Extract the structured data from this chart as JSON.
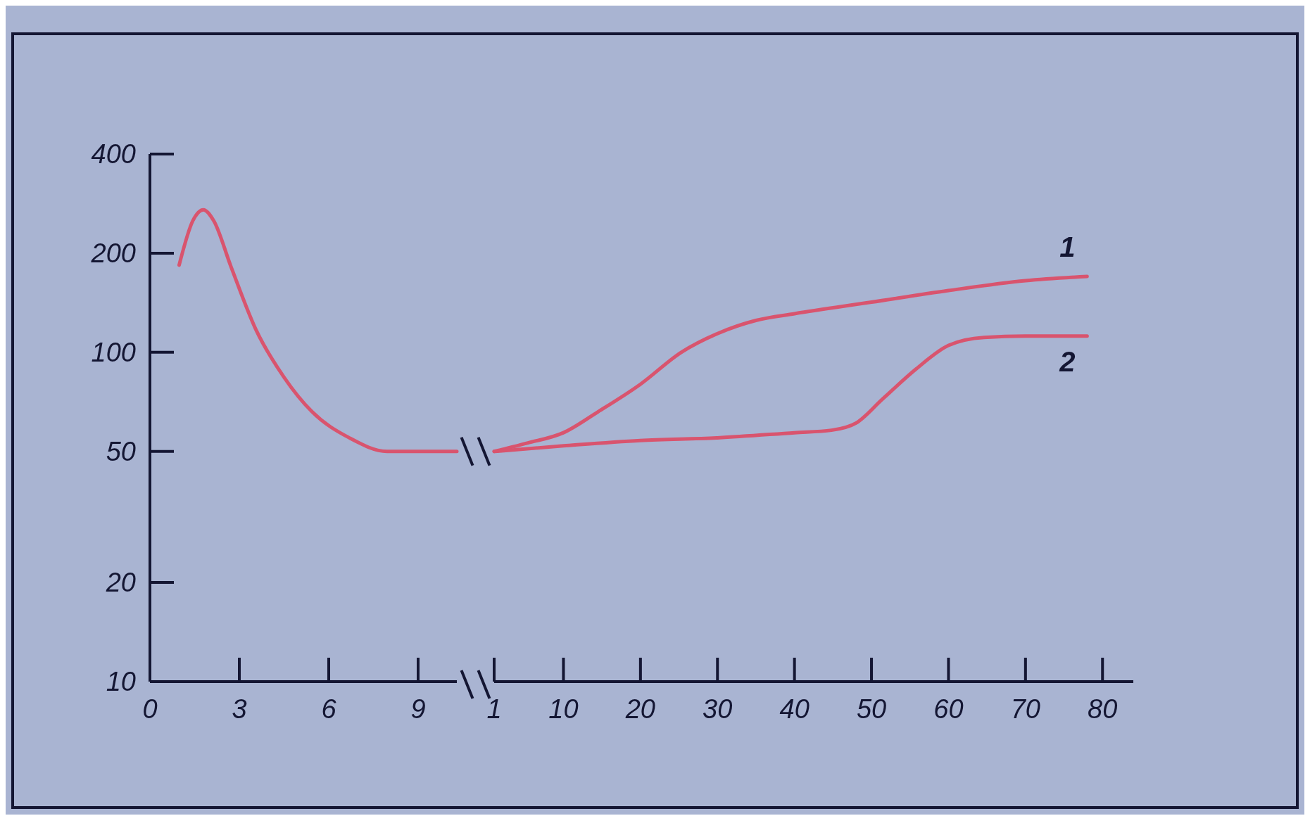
{
  "chart_data": [
    {
      "type": "line",
      "x": [
        0.98,
        1.44,
        1.79,
        2.14,
        2.72,
        3.56,
        4.5,
        5.44,
        6.69,
        7.96,
        9.55,
        10.3
      ],
      "series": [
        {
          "color": "#d9546e",
          "values": [
            184,
            251,
            271,
            251,
            182,
            117,
            84,
            66,
            55,
            50,
            50,
            50
          ]
        }
      ],
      "xlim": [
        0,
        10.3
      ],
      "ylim": [
        10,
        400
      ],
      "xticks": [
        0,
        3,
        6,
        9
      ],
      "yticks": [
        10,
        20,
        50,
        100,
        200,
        400
      ],
      "log": true,
      "marker": "none",
      "line_style": "solid"
    },
    {
      "type": "line",
      "x": [
        1,
        5.3,
        10,
        14.5,
        20,
        25.3,
        30,
        35,
        40,
        50,
        60,
        70,
        78
      ],
      "series": [
        {
          "name": "1",
          "color": "#d9546e",
          "values": [
            50,
            53,
            57,
            66,
            80,
            100,
            114,
            125,
            131,
            142,
            154,
            165,
            170
          ]
        },
        {
          "name": "2",
          "color": "#d9546e",
          "x": [
            1,
            10,
            20,
            30,
            40,
            44.8,
            48,
            51.4,
            55.8,
            60,
            64.6,
            70,
            78
          ],
          "values": [
            50,
            52,
            54,
            55,
            57,
            58,
            61,
            72,
            89,
            105,
            111,
            112,
            112
          ]
        }
      ],
      "xlim": [
        1,
        84
      ],
      "ylim": [
        10,
        400
      ],
      "xticks": [
        1,
        10,
        20,
        30,
        40,
        50,
        60,
        70,
        80
      ],
      "log": true,
      "tick_labels": "x",
      "marker": "none",
      "line_style": "solid"
    }
  ]
}
